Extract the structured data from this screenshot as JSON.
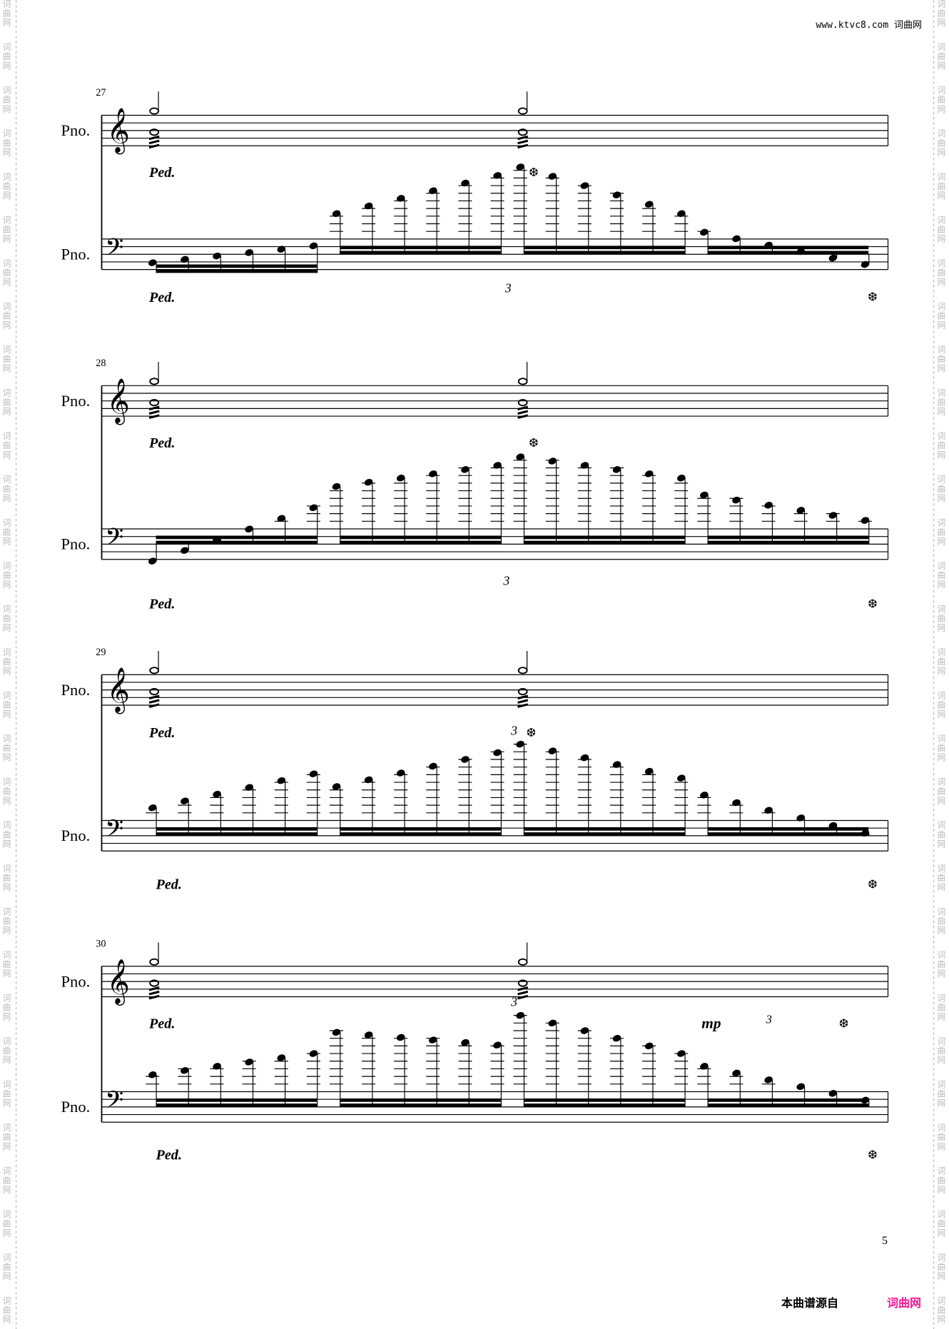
{
  "header": {
    "site": "www.ktvc8.com 词曲网"
  },
  "watermark": {
    "side_text": [
      "词",
      "曲",
      "网"
    ]
  },
  "instrument_label": "Pno.",
  "systems": [
    {
      "measure": "27",
      "treble_ped": "Ped.",
      "treble_release": "❆",
      "bass_ped": "Ped.",
      "bass_release": "❆",
      "tuplet": "3"
    },
    {
      "measure": "28",
      "treble_ped": "Ped.",
      "treble_release": "❆",
      "bass_ped": "Ped.",
      "bass_release": "❆",
      "tuplet": "3"
    },
    {
      "measure": "29",
      "treble_ped": "Ped.",
      "treble_release": "❆",
      "bass_ped": "Ped.",
      "bass_release": "❆",
      "tuplet": "3"
    },
    {
      "measure": "30",
      "treble_ped": "Ped.",
      "treble_release": "❆",
      "bass_ped": "Ped.",
      "bass_release": "❆",
      "tuplet": "3",
      "dynamic": "mp",
      "tuplet2": "3"
    }
  ],
  "page_number": "5",
  "footer": {
    "source": "本曲谱源自",
    "brand": "词曲网",
    "brand_color": "#ff1493"
  }
}
